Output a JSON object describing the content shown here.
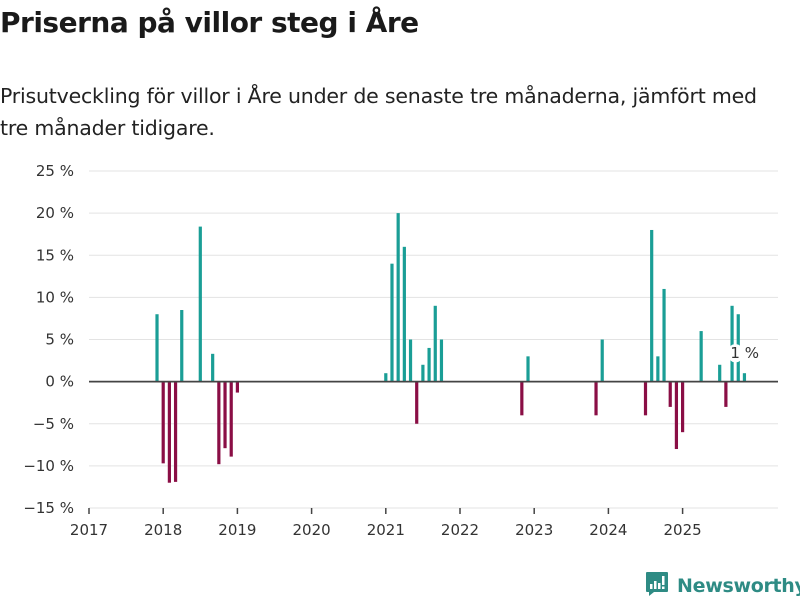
{
  "header": {
    "title": "Priserna på villor steg i Åre",
    "subtitle": "Prisutveckling för villor i Åre under de senaste tre månaderna, jämfört med tre månader tidigare."
  },
  "logo": {
    "icon": "bar-chart-speech-bubble-icon",
    "text": "Newsworthy"
  },
  "colors": {
    "positive": "#1a9e96",
    "negative": "#8a0e45",
    "zero_line": "#444444",
    "grid": "#e3e3e3",
    "logo": "#2e8b84"
  },
  "chart_data": {
    "type": "bar",
    "title": "Priserna på villor steg i Åre",
    "xlabel": "",
    "ylabel": "",
    "ylim": [
      -15,
      25
    ],
    "yticks": [
      -15,
      -10,
      -5,
      0,
      5,
      10,
      15,
      20,
      25
    ],
    "ytick_labels": [
      "−15 %",
      "−10 %",
      "−5 %",
      "0 %",
      "5 %",
      "10 %",
      "15 %",
      "20 %",
      "25 %"
    ],
    "xlim": [
      "2017-01",
      "2026-04"
    ],
    "xticks": [
      "2017",
      "2018",
      "2019",
      "2020",
      "2021",
      "2022",
      "2023",
      "2024",
      "2025"
    ],
    "grid": true,
    "annotation": {
      "x": "2025-11",
      "text": "1 %"
    },
    "x": [
      "2017-12",
      "2018-01",
      "2018-02",
      "2018-03",
      "2018-04",
      "2018-07",
      "2018-09",
      "2018-10",
      "2018-11",
      "2018-12",
      "2019-01",
      "2021-01",
      "2021-02",
      "2021-03",
      "2021-04",
      "2021-05",
      "2021-06",
      "2021-07",
      "2021-08",
      "2021-09",
      "2021-10",
      "2022-11",
      "2022-12",
      "2023-11",
      "2023-12",
      "2024-07",
      "2024-08",
      "2024-09",
      "2024-10",
      "2024-11",
      "2024-12",
      "2025-01",
      "2025-04",
      "2025-07",
      "2025-08",
      "2025-09",
      "2025-10",
      "2025-11"
    ],
    "values": [
      8,
      -9.7,
      -12,
      -11.9,
      8.5,
      18.4,
      3.3,
      -9.8,
      -7.9,
      -8.9,
      -1.3,
      1,
      14,
      20,
      16,
      5,
      -5,
      2,
      4,
      9,
      5,
      -4,
      3,
      -4,
      5,
      -4,
      18,
      3,
      11,
      -3,
      -8,
      -6,
      6,
      2,
      -3,
      9,
      8,
      1
    ]
  }
}
